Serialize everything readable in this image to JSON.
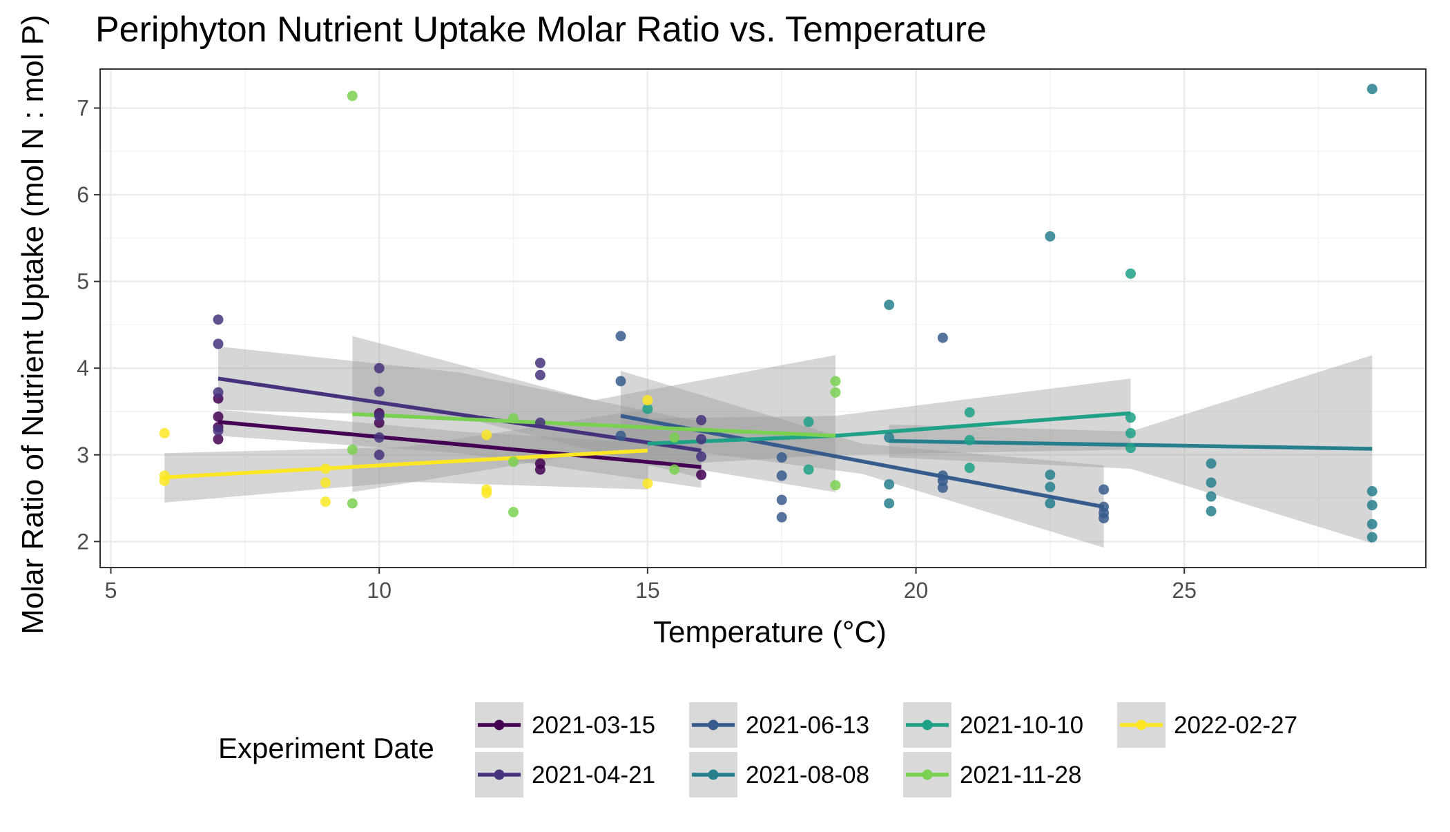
{
  "chart_data": {
    "type": "scatter",
    "title": "Periphyton Nutrient Uptake Molar Ratio vs. Temperature",
    "xlabel": "Temperature (°C)",
    "ylabel": "Molar Ratio of Nutrient Uptake (mol N : mol P)",
    "xlim": [
      4.8,
      29.5
    ],
    "ylim": [
      1.7,
      7.45
    ],
    "xticks": [
      5,
      10,
      15,
      20,
      25
    ],
    "yticks": [
      2,
      3,
      4,
      5,
      6,
      7
    ],
    "grid": true,
    "legend": {
      "title": "Experiment Date",
      "position": "bottom"
    },
    "series": [
      {
        "name": "2021-03-15",
        "color": "#440154",
        "points": [
          [
            7,
            3.18
          ],
          [
            7,
            3.32
          ],
          [
            7,
            3.44
          ],
          [
            7,
            3.65
          ],
          [
            10,
            3.37
          ],
          [
            10,
            3.48
          ],
          [
            13,
            2.83
          ],
          [
            13,
            2.9
          ],
          [
            16,
            2.77
          ]
        ],
        "trend": {
          "x": [
            7,
            16
          ],
          "y": [
            3.38,
            2.86
          ]
        },
        "band": {
          "x": [
            7,
            11.5,
            16
          ],
          "lower": [
            3.22,
            3.02,
            2.62
          ],
          "upper": [
            3.52,
            3.27,
            3.1
          ]
        }
      },
      {
        "name": "2021-04-21",
        "color": "#46337e",
        "points": [
          [
            7,
            3.28
          ],
          [
            7,
            3.72
          ],
          [
            7,
            4.28
          ],
          [
            7,
            4.56
          ],
          [
            10,
            3.0
          ],
          [
            10,
            3.2
          ],
          [
            10,
            3.45
          ],
          [
            10,
            3.73
          ],
          [
            10,
            4.0
          ],
          [
            13,
            3.37
          ],
          [
            13,
            3.92
          ],
          [
            13,
            4.06
          ],
          [
            16,
            2.98
          ],
          [
            16,
            3.18
          ],
          [
            16,
            3.4
          ]
        ],
        "trend": {
          "x": [
            7,
            16
          ],
          "y": [
            3.88,
            3.05
          ]
        },
        "band": {
          "x": [
            7,
            11.5,
            16
          ],
          "lower": [
            3.52,
            3.44,
            2.73
          ],
          "upper": [
            4.25,
            3.95,
            3.38
          ]
        }
      },
      {
        "name": "2021-06-13",
        "color": "#365c8d",
        "points": [
          [
            14.5,
            3.22
          ],
          [
            14.5,
            3.85
          ],
          [
            14.5,
            4.37
          ],
          [
            17.5,
            2.28
          ],
          [
            17.5,
            2.48
          ],
          [
            17.5,
            2.76
          ],
          [
            17.5,
            2.97
          ],
          [
            20.5,
            2.62
          ],
          [
            20.5,
            2.7
          ],
          [
            20.5,
            2.76
          ],
          [
            20.5,
            4.35
          ],
          [
            23.5,
            2.27
          ],
          [
            23.5,
            2.33
          ],
          [
            23.5,
            2.4
          ],
          [
            23.5,
            2.6
          ]
        ],
        "trend": {
          "x": [
            14.5,
            23.5
          ],
          "y": [
            3.45,
            2.4
          ]
        },
        "band": {
          "x": [
            14.5,
            19,
            23.5
          ],
          "lower": [
            3.15,
            2.78,
            1.93
          ],
          "upper": [
            3.97,
            3.13,
            2.88
          ]
        }
      },
      {
        "name": "2021-08-08",
        "color": "#277f8e",
        "points": [
          [
            19.5,
            2.44
          ],
          [
            19.5,
            2.66
          ],
          [
            19.5,
            3.2
          ],
          [
            19.5,
            4.73
          ],
          [
            22.5,
            2.44
          ],
          [
            22.5,
            2.63
          ],
          [
            22.5,
            2.77
          ],
          [
            22.5,
            5.52
          ],
          [
            25.5,
            2.35
          ],
          [
            25.5,
            2.52
          ],
          [
            25.5,
            2.68
          ],
          [
            25.5,
            2.9
          ],
          [
            28.5,
            2.05
          ],
          [
            28.5,
            2.2
          ],
          [
            28.5,
            2.42
          ],
          [
            28.5,
            2.58
          ],
          [
            28.5,
            7.22
          ]
        ],
        "trend": {
          "x": [
            19.5,
            28.5
          ],
          "y": [
            3.16,
            3.07
          ]
        },
        "band": {
          "x": [
            19.5,
            24,
            28.5
          ],
          "lower": [
            2.97,
            2.84,
            1.98
          ],
          "upper": [
            3.35,
            3.27,
            4.15
          ]
        }
      },
      {
        "name": "2021-10-10",
        "color": "#1fa187",
        "points": [
          [
            15,
            3.53
          ],
          [
            18,
            2.83
          ],
          [
            18,
            3.38
          ],
          [
            21,
            2.85
          ],
          [
            21,
            3.17
          ],
          [
            21,
            3.49
          ],
          [
            24,
            3.08
          ],
          [
            24,
            3.25
          ],
          [
            24,
            3.43
          ],
          [
            24,
            5.09
          ]
        ],
        "trend": {
          "x": [
            15,
            18.5,
            24
          ],
          "y": [
            3.13,
            3.22,
            3.48
          ]
        },
        "band": {
          "x": [
            15,
            18.5,
            24
          ],
          "lower": [
            2.87,
            3.0,
            3.06
          ],
          "upper": [
            3.42,
            3.45,
            3.88
          ]
        }
      },
      {
        "name": "2021-11-28",
        "color": "#7ad151",
        "points": [
          [
            9.5,
            2.44
          ],
          [
            9.5,
            3.06
          ],
          [
            9.5,
            7.14
          ],
          [
            12.5,
            2.34
          ],
          [
            12.5,
            2.92
          ],
          [
            12.5,
            3.42
          ],
          [
            15.5,
            2.83
          ],
          [
            15.5,
            3.2
          ],
          [
            18.5,
            2.65
          ],
          [
            18.5,
            3.72
          ],
          [
            18.5,
            3.85
          ]
        ],
        "trend": {
          "x": [
            9.5,
            18.5
          ],
          "y": [
            3.47,
            3.22
          ]
        },
        "band": {
          "x": [
            9.5,
            14,
            18.5
          ],
          "lower": [
            2.57,
            3.03,
            2.57
          ],
          "upper": [
            4.37,
            3.63,
            4.15
          ]
        }
      },
      {
        "name": "2022-02-27",
        "color": "#fde725",
        "points": [
          [
            6,
            2.7
          ],
          [
            6,
            2.76
          ],
          [
            6,
            3.25
          ],
          [
            9,
            2.46
          ],
          [
            9,
            2.68
          ],
          [
            9,
            2.84
          ],
          [
            12,
            2.56
          ],
          [
            12,
            2.6
          ],
          [
            12,
            3.23
          ],
          [
            15,
            2.67
          ],
          [
            15,
            3.63
          ]
        ],
        "trend": {
          "x": [
            6,
            15
          ],
          "y": [
            2.74,
            3.05
          ]
        },
        "band": {
          "x": [
            6,
            10.5,
            15
          ],
          "lower": [
            2.45,
            2.69,
            2.6
          ],
          "upper": [
            3.02,
            3.09,
            3.53
          ]
        }
      }
    ]
  }
}
